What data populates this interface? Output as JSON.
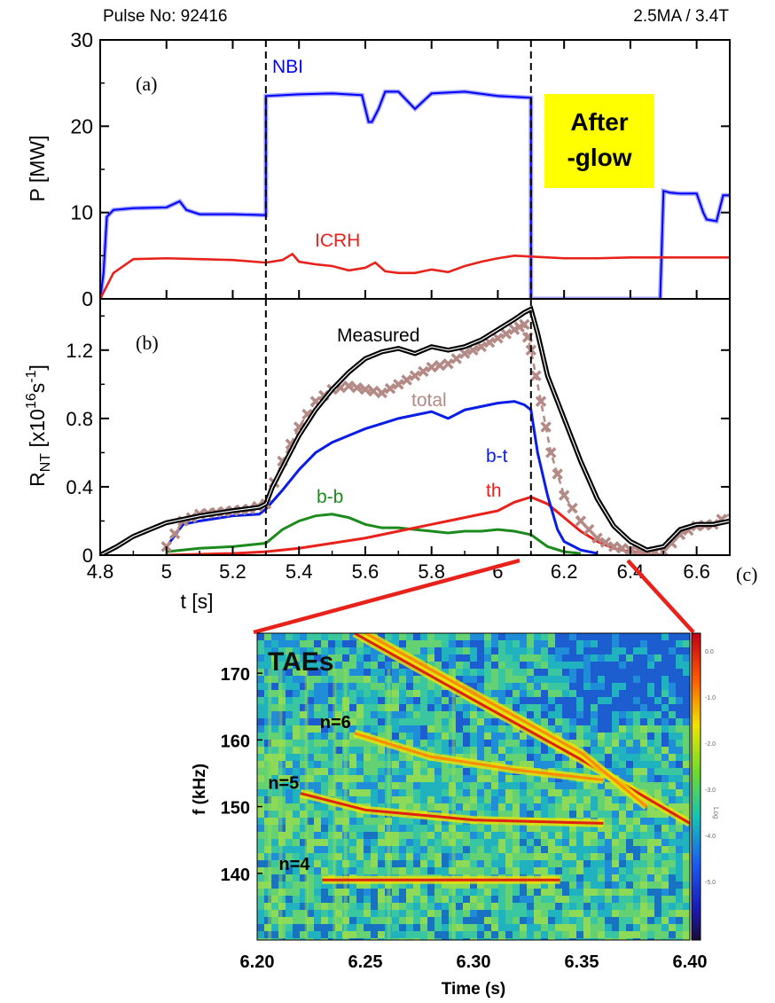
{
  "header": {
    "pulse": "Pulse No: 92416",
    "params": "2.5MA / 3.4T"
  },
  "afterglow": {
    "line1": "After",
    "line2": "-glow"
  },
  "colors": {
    "nbi": "#0000ff",
    "icrh": "#e8211b",
    "measured": "#000000",
    "total": "#b48a86",
    "bt": "#0a1de6",
    "bb": "#1c8a1c",
    "th": "#e8211b",
    "connector": "#e8211b"
  },
  "chart_data": [
    {
      "id": "a",
      "type": "line",
      "panel_label": "(a)",
      "ylabel": "P [MW]",
      "xlim": [
        4.8,
        6.7
      ],
      "ylim": [
        0,
        30
      ],
      "yticks": [
        0,
        10,
        20,
        30
      ],
      "vlines": [
        5.3,
        6.1
      ],
      "series": [
        {
          "name": "NBI",
          "color": "#0000ff",
          "x": [
            4.8,
            4.81,
            4.82,
            4.84,
            4.9,
            5.0,
            5.04,
            5.06,
            5.1,
            5.2,
            5.3,
            5.3,
            5.4,
            5.5,
            5.59,
            5.61,
            5.62,
            5.64,
            5.66,
            5.7,
            5.75,
            5.8,
            5.9,
            6.0,
            6.1,
            6.1,
            6.3,
            6.49,
            6.5,
            6.51,
            6.52,
            6.55,
            6.6,
            6.62,
            6.63,
            6.66,
            6.68,
            6.7
          ],
          "y": [
            0,
            3,
            9.5,
            10.3,
            10.5,
            10.6,
            11.3,
            10.3,
            9.8,
            9.8,
            9.7,
            23.5,
            23.7,
            23.8,
            23.6,
            20.5,
            20.5,
            22,
            24,
            24,
            22,
            23.8,
            24,
            23.5,
            23.3,
            0,
            0,
            0,
            12.5,
            12.4,
            12.3,
            12.2,
            12.2,
            10,
            9.2,
            9,
            12,
            12
          ]
        },
        {
          "name": "ICRH",
          "color": "#e8211b",
          "x": [
            4.8,
            4.84,
            4.9,
            5.0,
            5.1,
            5.2,
            5.3,
            5.35,
            5.38,
            5.4,
            5.45,
            5.5,
            5.55,
            5.6,
            5.63,
            5.66,
            5.7,
            5.75,
            5.8,
            5.85,
            5.9,
            5.95,
            6.0,
            6.05,
            6.1,
            6.2,
            6.3,
            6.4,
            6.5,
            6.6,
            6.7
          ],
          "y": [
            0,
            3,
            4.6,
            4.7,
            4.6,
            4.5,
            4.2,
            4.5,
            5.2,
            4.3,
            4.0,
            3.8,
            3.3,
            3.6,
            4.2,
            3.2,
            3.0,
            3.0,
            3.4,
            3.1,
            3.8,
            4.3,
            4.7,
            5.0,
            4.9,
            4.7,
            4.7,
            4.8,
            4.8,
            4.8,
            4.8
          ]
        }
      ]
    },
    {
      "id": "b",
      "type": "line",
      "panel_label": "(b)",
      "ylabel_main": "R",
      "ylabel_sub": "NT",
      "ylabel_rest": " [x10",
      "ylabel_exp1": "16",
      "ylabel_s": "s",
      "ylabel_exp2": "-1",
      "ylabel_close": "]",
      "xlabel": "t [s]",
      "xlim": [
        4.8,
        6.7
      ],
      "ylim": [
        0,
        1.5
      ],
      "yticks": [
        0,
        0.4,
        0.8,
        1.2
      ],
      "ytick_labels": [
        "0",
        "0.4",
        "0.8",
        "1.2"
      ],
      "xticks": [
        4.8,
        5,
        5.2,
        5.4,
        5.6,
        5.8,
        6,
        6.2,
        6.4,
        6.6
      ],
      "xtick_labels": [
        "4.8",
        "5",
        "5.2",
        "5.4",
        "5.6",
        "5.8",
        "6",
        "6.2",
        "6.4",
        "6.6"
      ],
      "vlines": [
        5.3,
        6.1
      ],
      "series": [
        {
          "name": "Measured",
          "color": "#000000",
          "x": [
            4.8,
            4.85,
            4.9,
            4.95,
            5.0,
            5.1,
            5.2,
            5.28,
            5.3,
            5.32,
            5.36,
            5.4,
            5.45,
            5.5,
            5.55,
            5.6,
            5.65,
            5.7,
            5.75,
            5.8,
            5.85,
            5.9,
            5.95,
            6.0,
            6.05,
            6.08,
            6.1,
            6.12,
            6.15,
            6.2,
            6.25,
            6.3,
            6.35,
            6.4,
            6.45,
            6.5,
            6.55,
            6.6,
            6.65,
            6.7
          ],
          "y": [
            0,
            0.05,
            0.11,
            0.15,
            0.19,
            0.23,
            0.26,
            0.28,
            0.3,
            0.4,
            0.55,
            0.7,
            0.85,
            0.97,
            1.07,
            1.15,
            1.19,
            1.21,
            1.18,
            1.22,
            1.2,
            1.22,
            1.26,
            1.32,
            1.38,
            1.42,
            1.44,
            1.3,
            1.05,
            0.8,
            0.55,
            0.33,
            0.17,
            0.08,
            0.03,
            0.05,
            0.15,
            0.18,
            0.18,
            0.2
          ]
        },
        {
          "name": "total",
          "color": "#b48a86",
          "x": [
            5.0,
            5.05,
            5.1,
            5.15,
            5.2,
            5.25,
            5.3,
            5.35,
            5.4,
            5.45,
            5.5,
            5.55,
            5.6,
            5.65,
            5.7,
            5.75,
            5.8,
            5.85,
            5.9,
            5.95,
            6.0,
            6.05,
            6.08,
            6.1,
            6.13,
            6.16,
            6.2,
            6.25,
            6.3,
            6.35,
            6.4,
            6.45,
            6.5,
            6.55,
            6.6,
            6.65,
            6.7
          ],
          "y": [
            0.05,
            0.2,
            0.24,
            0.25,
            0.26,
            0.27,
            0.3,
            0.55,
            0.75,
            0.9,
            0.97,
            0.99,
            0.97,
            0.95,
            1.0,
            1.05,
            1.1,
            1.12,
            1.18,
            1.22,
            1.27,
            1.32,
            1.35,
            1.2,
            0.9,
            0.6,
            0.35,
            0.2,
            0.1,
            0.05,
            0.03,
            0.02,
            0.02,
            0.12,
            0.17,
            0.18,
            0.24
          ]
        },
        {
          "name": "b-t",
          "color": "#0a1de6",
          "x": [
            5.0,
            5.05,
            5.1,
            5.2,
            5.28,
            5.3,
            5.35,
            5.4,
            5.45,
            5.5,
            5.55,
            5.6,
            5.65,
            5.7,
            5.75,
            5.8,
            5.85,
            5.9,
            5.95,
            6.0,
            6.05,
            6.08,
            6.1,
            6.12,
            6.15,
            6.18,
            6.2,
            6.25,
            6.3
          ],
          "y": [
            0.05,
            0.18,
            0.2,
            0.23,
            0.24,
            0.27,
            0.38,
            0.5,
            0.6,
            0.66,
            0.7,
            0.74,
            0.77,
            0.8,
            0.82,
            0.84,
            0.8,
            0.85,
            0.87,
            0.89,
            0.9,
            0.88,
            0.85,
            0.6,
            0.35,
            0.15,
            0.08,
            0.03,
            0.01
          ]
        },
        {
          "name": "b-b",
          "color": "#1c8a1c",
          "x": [
            5.0,
            5.1,
            5.2,
            5.3,
            5.35,
            5.4,
            5.45,
            5.5,
            5.55,
            5.6,
            5.65,
            5.7,
            5.75,
            5.8,
            5.85,
            5.9,
            5.95,
            6.0,
            6.05,
            6.1,
            6.15,
            6.2,
            6.25
          ],
          "y": [
            0.02,
            0.04,
            0.05,
            0.07,
            0.15,
            0.2,
            0.23,
            0.24,
            0.22,
            0.18,
            0.16,
            0.16,
            0.15,
            0.14,
            0.13,
            0.14,
            0.14,
            0.15,
            0.14,
            0.12,
            0.05,
            0.02,
            0.01
          ]
        },
        {
          "name": "th",
          "color": "#e8211b",
          "x": [
            5.0,
            5.1,
            5.2,
            5.3,
            5.4,
            5.5,
            5.6,
            5.7,
            5.8,
            5.9,
            5.95,
            6.0,
            6.05,
            6.1,
            6.15,
            6.2,
            6.25,
            6.3,
            6.35,
            6.4,
            6.45
          ],
          "y": [
            0,
            0.005,
            0.01,
            0.02,
            0.04,
            0.07,
            0.1,
            0.14,
            0.18,
            0.22,
            0.24,
            0.26,
            0.31,
            0.34,
            0.3,
            0.22,
            0.14,
            0.08,
            0.04,
            0.02,
            0.01
          ]
        }
      ]
    },
    {
      "id": "c",
      "type": "heatmap",
      "panel_label": "(c)",
      "title": "TAEs",
      "xlabel": "Time (s)",
      "ylabel": "f (kHz)",
      "xlim": [
        6.2,
        6.4
      ],
      "ylim": [
        130,
        176
      ],
      "xticks": [
        6.2,
        6.25,
        6.3,
        6.35,
        6.4
      ],
      "xtick_labels": [
        "6.20",
        "6.25",
        "6.30",
        "6.35",
        "6.40"
      ],
      "yticks": [
        140,
        150,
        160,
        170
      ],
      "ytick_labels": [
        "140",
        "150",
        "160",
        "170"
      ],
      "colorbar_ticks": [
        0,
        -1,
        -2,
        -3,
        -4,
        -5
      ],
      "colorbar_labels": [
        "0.0",
        "-1.0",
        "-2.0",
        "-3.0",
        "-4.0",
        "-5.0"
      ],
      "colorbar_title": "Log",
      "mode_labels": [
        {
          "text": "n=6",
          "x": 6.229,
          "y": 161.8
        },
        {
          "text": "n=5",
          "x": 6.205,
          "y": 152.7
        },
        {
          "text": "n=4",
          "x": 6.21,
          "y": 140.5
        }
      ],
      "modes": [
        {
          "x": [
            6.245,
            6.3,
            6.35,
            6.4
          ],
          "y": [
            176,
            166,
            157,
            147.5
          ],
          "intensity": "high"
        },
        {
          "x": [
            6.25,
            6.3,
            6.35,
            6.38
          ],
          "y": [
            176,
            167,
            158,
            150
          ],
          "intensity": "medium"
        },
        {
          "x": [
            6.245,
            6.28,
            6.32,
            6.36
          ],
          "y": [
            161,
            157.5,
            155.5,
            154
          ],
          "intensity": "medium"
        },
        {
          "x": [
            6.22,
            6.25,
            6.3,
            6.36
          ],
          "y": [
            152,
            149.5,
            148,
            147.5
          ],
          "intensity": "high"
        },
        {
          "x": [
            6.23,
            6.27,
            6.34
          ],
          "y": [
            139,
            139,
            139
          ],
          "intensity": "high"
        }
      ]
    }
  ]
}
